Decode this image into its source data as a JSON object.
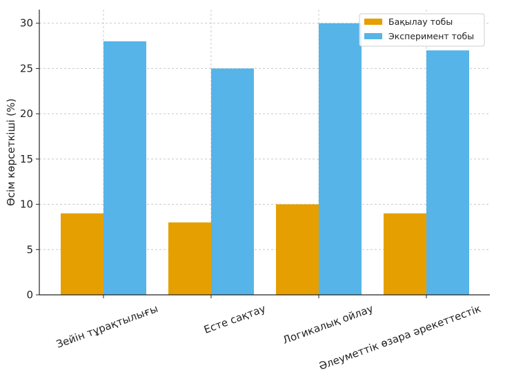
{
  "chart_data": {
    "type": "bar",
    "title": "",
    "xlabel": "",
    "ylabel": "Өсім көрсеткіші (%)",
    "categories": [
      "Зейін тұрақтылығы",
      "Есте сақтау",
      "Логикалық ойлау",
      "Әлеуметтік өзара әрекеттестік"
    ],
    "series": [
      {
        "name": "Бақылау тобы",
        "values": [
          9,
          8,
          10,
          9
        ],
        "color": "#E69F00"
      },
      {
        "name": "Эксперимент тобы",
        "values": [
          28,
          25,
          30,
          27
        ],
        "color": "#56B4E9"
      }
    ],
    "ylim": [
      0,
      31.5
    ],
    "yticks": [
      0,
      5,
      10,
      15,
      20,
      25,
      30
    ],
    "grid": true,
    "legend_position": "top-right"
  }
}
